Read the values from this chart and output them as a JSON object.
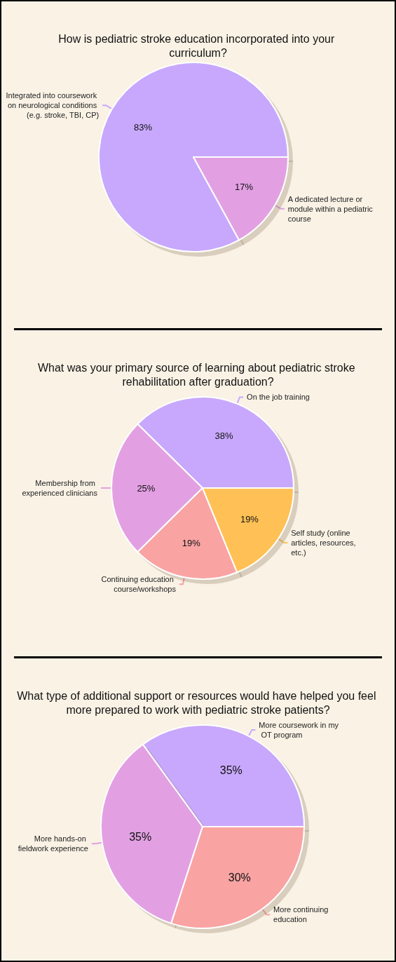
{
  "chart_data": [
    {
      "type": "pie",
      "title": "How is pediatric stroke education incorporated into your curriculum?",
      "categories": [
        "Integrated into coursework on neurological conditions (e.g. stroke, TBI, CP)",
        "A dedicated lecture or module within a pediatric course"
      ],
      "values": [
        83,
        17
      ],
      "colors": [
        "#c8a8fc",
        "#e2a0e2"
      ],
      "value_labels": [
        "83%",
        "17%"
      ],
      "legend": false
    },
    {
      "type": "pie",
      "title": "What was your primary source of learning about pediatric stroke rehabilitation after graduation?",
      "categories": [
        "On the job training",
        "Membership from experienced clinicians",
        "Continuing education course/workshops",
        "Self study (online articles, resources, etc.)"
      ],
      "values": [
        38,
        25,
        19,
        19
      ],
      "colors": [
        "#c8a8fc",
        "#e2a0e2",
        "#f9a3a3",
        "#ffc154"
      ],
      "value_labels": [
        "38%",
        "25%",
        "19%",
        "19%"
      ],
      "legend": false
    },
    {
      "type": "pie",
      "title": "What type of additional support or resources would have helped you feel more prepared to work with pediatric stroke patients?",
      "categories": [
        "More coursework in my OT program",
        "More hands-on fieldwork experience",
        "More continuing education"
      ],
      "values": [
        35,
        35,
        30
      ],
      "colors": [
        "#c8a8fc",
        "#e2a0e2",
        "#f9a3a3"
      ],
      "value_labels": [
        "35%",
        "35%",
        "30%"
      ],
      "legend": false
    }
  ]
}
